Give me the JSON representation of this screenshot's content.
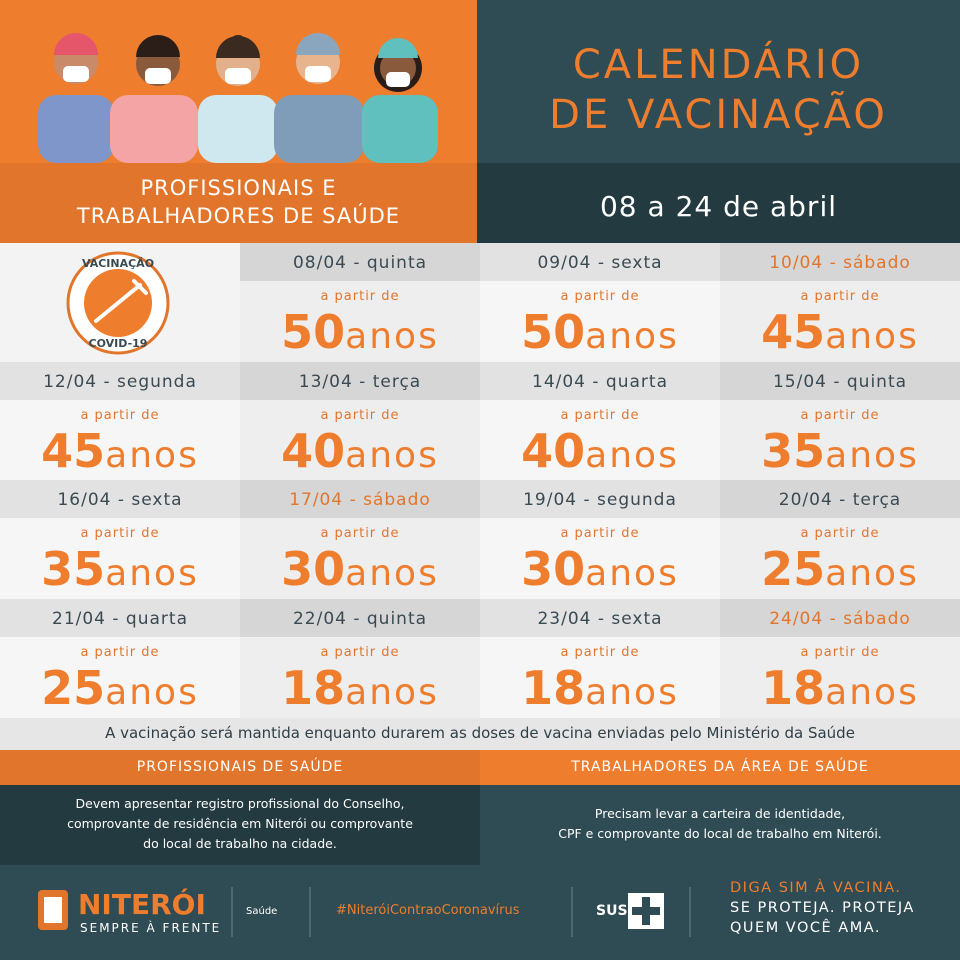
{
  "header": {
    "left_title": [
      "PROFISSIONAIS E",
      "TRABALHADORES DE SAÚDE"
    ],
    "right_title": [
      "CALENDÁRIO",
      "DE VACINAÇÃO"
    ],
    "date_range": "08 a 24 de abril"
  },
  "badge": {
    "top": "VACINAÇÃO",
    "bottom": "COVID-19"
  },
  "schedule": [
    {
      "date": "08/04 - quinta",
      "prefix": "a partir de",
      "age": 50,
      "unit": "anos",
      "date_color": "#3a4a52"
    },
    {
      "date": "09/04 - sexta",
      "prefix": "a partir de",
      "age": 50,
      "unit": "anos",
      "date_color": "#3a4a52"
    },
    {
      "date": "10/04 - sábado",
      "prefix": "a partir de",
      "age": 45,
      "unit": "anos",
      "date_color": "#e2752c"
    },
    {
      "date": "12/04 - segunda",
      "prefix": "a partir de",
      "age": 45,
      "unit": "anos",
      "date_color": "#3a4a52"
    },
    {
      "date": "13/04 - terça",
      "prefix": "a partir de",
      "age": 40,
      "unit": "anos",
      "date_color": "#3a4a52"
    },
    {
      "date": "14/04 - quarta",
      "prefix": "a partir de",
      "age": 40,
      "unit": "anos",
      "date_color": "#3a4a52"
    },
    {
      "date": "15/04 - quinta",
      "prefix": "a partir de",
      "age": 35,
      "unit": "anos",
      "date_color": "#3a4a52"
    },
    {
      "date": "16/04 - sexta",
      "prefix": "a partir de",
      "age": 35,
      "unit": "anos",
      "date_color": "#3a4a52"
    },
    {
      "date": "17/04 - sábado",
      "prefix": "a partir de",
      "age": 30,
      "unit": "anos",
      "date_color": "#e2752c"
    },
    {
      "date": "19/04 - segunda",
      "prefix": "a partir de",
      "age": 30,
      "unit": "anos",
      "date_color": "#3a4a52"
    },
    {
      "date": "20/04 - terça",
      "prefix": "a partir de",
      "age": 25,
      "unit": "anos",
      "date_color": "#3a4a52"
    },
    {
      "date": "21/04 - quarta",
      "prefix": "a partir de",
      "age": 25,
      "unit": "anos",
      "date_color": "#3a4a52"
    },
    {
      "date": "22/04 - quinta",
      "prefix": "a partir de",
      "age": 18,
      "unit": "anos",
      "date_color": "#3a4a52"
    },
    {
      "date": "23/04 - sexta",
      "prefix": "a partir de",
      "age": 18,
      "unit": "anos",
      "date_color": "#3a4a52"
    },
    {
      "date": "24/04 - sábado",
      "prefix": "a partir de",
      "age": 18,
      "unit": "anos",
      "date_color": "#e2752c"
    }
  ],
  "notice": "A vacinação será mantida enquanto durarem as doses de vacina enviadas pelo Ministério da Saúde",
  "groups": [
    {
      "title": "PROFISSIONAIS DE SAÚDE",
      "lines": [
        "Devem apresentar registro profissional do Conselho,",
        "comprovante de residência em Niterói ou comprovante",
        "do local de trabalho na cidade."
      ]
    },
    {
      "title": "TRABALHADORES DA ÁREA DE SAÚDE",
      "lines": [
        "Precisam levar a carteira de identidade,",
        "CPF e comprovante do local de trabalho em Niterói."
      ]
    }
  ],
  "footer": {
    "city": "NITERÓI",
    "motto": "SEMPRE À FRENTE",
    "dept": "Saúde",
    "hashtag": "#NiteróiContraoCoronavírus",
    "sus": "SUS",
    "slogan": [
      "DIGA SIM À VACINA.",
      "SE PROTEJA. PROTEJA",
      "QUEM VOCÊ AMA."
    ]
  }
}
